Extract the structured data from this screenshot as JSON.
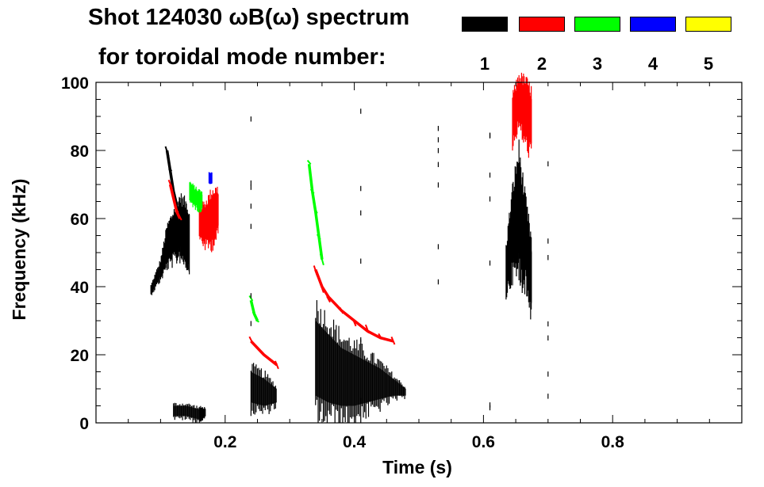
{
  "chart_data": {
    "type": "spectrogram",
    "title_line1": "Shot 124030 ωB(ω) spectrum",
    "title_line2": "for toroidal mode number:",
    "xlabel": "Time (s)",
    "ylabel": "Frequency (kHz)",
    "xlim": [
      0.0,
      1.0
    ],
    "ylim": [
      0,
      100
    ],
    "x_ticks": [
      {
        "value": 0.2,
        "label": "0.2"
      },
      {
        "value": 0.4,
        "label": "0.4"
      },
      {
        "value": 0.6,
        "label": "0.6"
      },
      {
        "value": 0.8,
        "label": "0.8"
      }
    ],
    "y_ticks": [
      {
        "value": 0,
        "label": "0"
      },
      {
        "value": 20,
        "label": "20"
      },
      {
        "value": 40,
        "label": "40"
      },
      {
        "value": 60,
        "label": "60"
      },
      {
        "value": 80,
        "label": "80"
      },
      {
        "value": 100,
        "label": "100"
      }
    ],
    "legend": [
      {
        "mode": "1",
        "color": "#000000"
      },
      {
        "mode": "2",
        "color": "#ff0000"
      },
      {
        "mode": "3",
        "color": "#00ff00"
      },
      {
        "mode": "4",
        "color": "#0000ff"
      },
      {
        "mode": "5",
        "color": "#ffff00"
      }
    ],
    "features": [
      {
        "name": "early-n1-band",
        "mode": "1",
        "kind": "band",
        "color": "#000000",
        "points": [
          [
            0.085,
            38,
            40
          ],
          [
            0.1,
            43,
            47
          ],
          [
            0.11,
            48,
            56
          ],
          [
            0.12,
            50,
            60
          ],
          [
            0.13,
            52,
            64
          ],
          [
            0.14,
            50,
            62
          ],
          [
            0.145,
            48,
            58
          ]
        ]
      },
      {
        "name": "early-n1-upper-streak",
        "mode": "1",
        "kind": "line",
        "color": "#000000",
        "points": [
          [
            0.11,
            80
          ],
          [
            0.115,
            74
          ],
          [
            0.12,
            68
          ],
          [
            0.125,
            64
          ]
        ]
      },
      {
        "name": "early-n2-upper-streak",
        "mode": "2",
        "kind": "line",
        "color": "#ff0000",
        "points": [
          [
            0.115,
            70
          ],
          [
            0.12,
            66
          ],
          [
            0.125,
            62
          ],
          [
            0.13,
            60
          ]
        ]
      },
      {
        "name": "early-n2-band",
        "mode": "2",
        "kind": "band",
        "color": "#ff0000",
        "points": [
          [
            0.16,
            56,
            62
          ],
          [
            0.17,
            54,
            63
          ],
          [
            0.18,
            55,
            66
          ],
          [
            0.19,
            58,
            67
          ]
        ]
      },
      {
        "name": "early-n3-patch",
        "mode": "3",
        "kind": "band",
        "color": "#00ff00",
        "points": [
          [
            0.145,
            66,
            70
          ],
          [
            0.155,
            64,
            68
          ],
          [
            0.165,
            63,
            67
          ]
        ]
      },
      {
        "name": "early-n4-spot",
        "mode": "4",
        "kind": "band",
        "color": "#0000ff",
        "points": [
          [
            0.175,
            71,
            73
          ],
          [
            0.18,
            71,
            73
          ]
        ]
      },
      {
        "name": "early-low-n1",
        "mode": "1",
        "kind": "band",
        "color": "#000000",
        "points": [
          [
            0.12,
            2,
            5
          ],
          [
            0.14,
            2,
            5
          ],
          [
            0.16,
            1,
            4
          ],
          [
            0.17,
            2,
            4
          ]
        ]
      },
      {
        "name": "mid-n1-band",
        "mode": "1",
        "kind": "band",
        "color": "#000000",
        "points": [
          [
            0.24,
            6,
            15
          ],
          [
            0.26,
            5,
            13
          ],
          [
            0.28,
            6,
            10
          ]
        ]
      },
      {
        "name": "mid-n2-line",
        "mode": "2",
        "kind": "line",
        "color": "#ff0000",
        "points": [
          [
            0.24,
            24
          ],
          [
            0.26,
            20
          ],
          [
            0.28,
            17
          ]
        ]
      },
      {
        "name": "mid-n3-line",
        "mode": "3",
        "kind": "line",
        "color": "#00ff00",
        "points": [
          [
            0.24,
            36
          ],
          [
            0.245,
            32
          ],
          [
            0.25,
            30
          ]
        ]
      },
      {
        "name": "main-n1-band",
        "mode": "1",
        "kind": "band",
        "color": "#000000",
        "points": [
          [
            0.34,
            8,
            30
          ],
          [
            0.36,
            6,
            26
          ],
          [
            0.38,
            5,
            22
          ],
          [
            0.4,
            5,
            20
          ],
          [
            0.42,
            6,
            18
          ],
          [
            0.44,
            7,
            16
          ],
          [
            0.46,
            8,
            13
          ],
          [
            0.48,
            8,
            10
          ]
        ]
      },
      {
        "name": "main-n2-chirp",
        "mode": "2",
        "kind": "line",
        "color": "#ff0000",
        "points": [
          [
            0.34,
            45
          ],
          [
            0.35,
            40
          ],
          [
            0.36,
            37
          ],
          [
            0.38,
            33
          ],
          [
            0.4,
            30
          ],
          [
            0.42,
            27
          ],
          [
            0.44,
            25
          ],
          [
            0.46,
            24
          ]
        ]
      },
      {
        "name": "main-n3-chirp",
        "mode": "3",
        "kind": "line",
        "color": "#00ff00",
        "points": [
          [
            0.33,
            76
          ],
          [
            0.335,
            68
          ],
          [
            0.34,
            62
          ],
          [
            0.345,
            55
          ],
          [
            0.35,
            48
          ]
        ]
      },
      {
        "name": "late-n1-column",
        "mode": "1",
        "kind": "band",
        "color": "#000000",
        "points": [
          [
            0.635,
            40,
            50
          ],
          [
            0.645,
            48,
            65
          ],
          [
            0.655,
            50,
            75
          ],
          [
            0.665,
            45,
            62
          ],
          [
            0.675,
            35,
            50
          ]
        ]
      },
      {
        "name": "late-n2-top",
        "mode": "2",
        "kind": "band",
        "color": "#ff0000",
        "points": [
          [
            0.645,
            84,
            94
          ],
          [
            0.655,
            90,
            100
          ],
          [
            0.665,
            85,
            98
          ],
          [
            0.675,
            82,
            95
          ]
        ]
      }
    ]
  }
}
